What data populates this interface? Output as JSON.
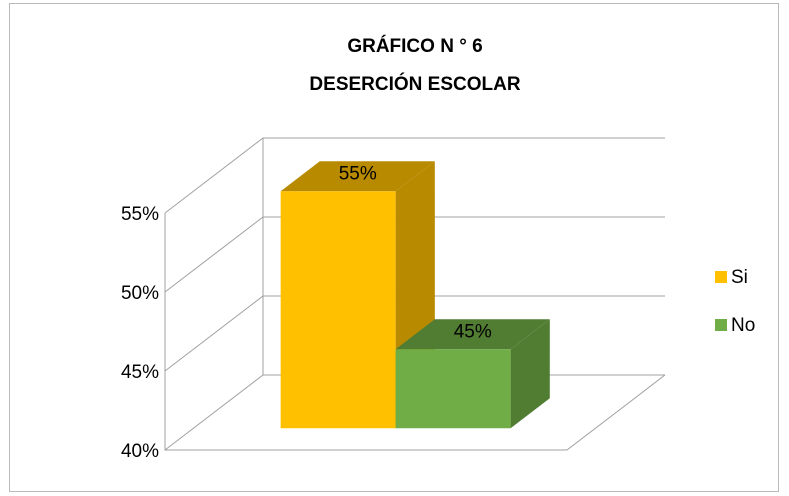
{
  "chart_data": {
    "type": "bar3d",
    "title": [
      "GRÁFICO N ° 6",
      "DESERCIÓN ESCOLAR"
    ],
    "categories": [
      "Si",
      "No"
    ],
    "series": [
      {
        "name": "Si",
        "color": "#ffc000",
        "values": [
          55,
          null
        ]
      },
      {
        "name": "No",
        "color": "#70ad47",
        "values": [
          null,
          45
        ]
      }
    ],
    "value_labels": [
      "55%",
      "45%"
    ],
    "ylim": [
      40,
      55
    ],
    "yticks": [
      {
        "value": 40,
        "label": "40%"
      },
      {
        "value": 45,
        "label": "45%"
      },
      {
        "value": 50,
        "label": "50%"
      },
      {
        "value": 55,
        "label": "55%"
      }
    ],
    "grid": true,
    "legend": "right"
  }
}
